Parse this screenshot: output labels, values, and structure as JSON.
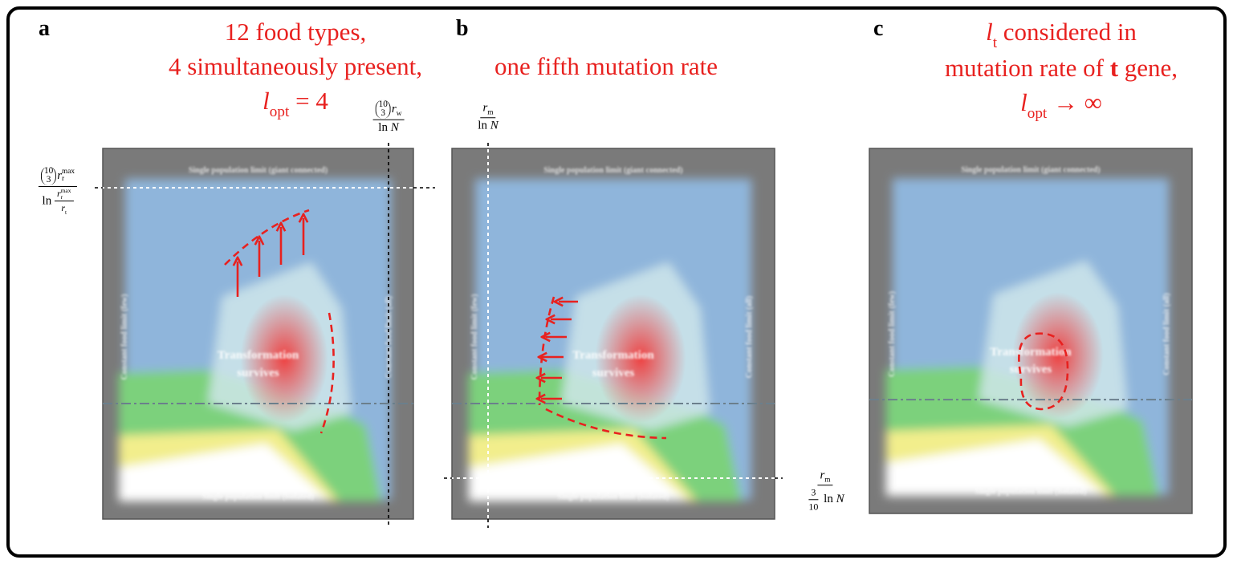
{
  "panels": [
    {
      "label": "a",
      "title": [
        [
          {
            "t": "12 food types,"
          }
        ],
        [
          {
            "t": "4 simultaneously present,"
          }
        ],
        [
          {
            "t": "l",
            "s": "it",
            "sub": "opt"
          },
          {
            "t": " = 4"
          }
        ]
      ],
      "regions": {
        "top": "Single population limit (giant connected)",
        "left": "Constant food limit (few)",
        "right": "Constant food limit (all)",
        "center": [
          "Transformation",
          "survives"
        ],
        "bottom": "Single population limit (isolated)"
      }
    },
    {
      "label": "b",
      "title": [
        [
          {
            "t": "one fifth mutation rate"
          }
        ]
      ],
      "regions": {
        "top": "Single population limit (giant connected)",
        "left": "Constant food limit (few)",
        "right": "Constant food limit (all)",
        "center": [
          "Transformation",
          "survives"
        ],
        "bottom": "Single population limit (isolated)"
      }
    },
    {
      "label": "c",
      "title": [
        [
          {
            "t": "l",
            "s": "it",
            "sub": "t"
          },
          {
            "t": " considered in"
          }
        ],
        [
          {
            "t": "mutation rate of "
          },
          {
            "t": "t",
            "s": "bold"
          },
          {
            "t": " gene,"
          }
        ],
        [
          {
            "t": "l",
            "s": "it",
            "sub": "opt"
          },
          {
            "t": " → ∞"
          }
        ]
      ],
      "regions": {
        "top": "Single population limit (giant connected)",
        "left": "Constant food limit (few)",
        "right": "Constant food limit (all)",
        "center": [
          "Transformation",
          "survives"
        ],
        "bottom": "Single population limit (isolated)"
      }
    }
  ],
  "axis_labels": [
    {
      "num": [
        {
          "top": "10",
          "bottom": "3"
        },
        {
          "t": "r",
          "s": "it",
          "sub": "w"
        }
      ],
      "den": [
        {
          "t": "ln "
        },
        {
          "t": "N",
          "s": "it"
        }
      ]
    },
    {
      "num": [
        {
          "top": "10",
          "bottom": "3"
        },
        {
          "t": "r",
          "s": "it",
          "sub": "r",
          "sup": "max"
        }
      ],
      "den": [
        {
          "t": "ln "
        },
        {
          "num": [
            {
              "t": "r",
              "s": "it",
              "sub": "r",
              "sup": "max"
            }
          ],
          "den": [
            {
              "t": "r",
              "s": "it",
              "sub": "t"
            }
          ]
        }
      ]
    },
    {
      "num": [
        {
          "t": "r",
          "s": "it",
          "sub": "m"
        }
      ],
      "den": [
        {
          "t": "ln "
        },
        {
          "t": "N",
          "s": "it"
        }
      ]
    },
    {
      "num": [
        {
          "t": "r",
          "s": "it",
          "sub": "m"
        }
      ],
      "den": [
        {
          "num": [
            {
              "t": "3"
            }
          ],
          "den": [
            {
              "t": "10"
            }
          ]
        },
        {
          "t": " ln "
        },
        {
          "t": "N",
          "s": "it"
        }
      ]
    }
  ]
}
